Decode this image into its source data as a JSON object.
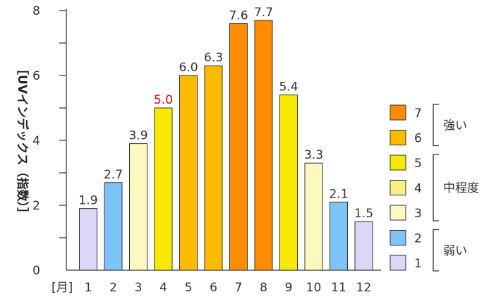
{
  "chart_data": {
    "type": "bar",
    "title": "",
    "ylabel": "［UVインデックス（指数）］",
    "xunit": "[月]",
    "ylim": [
      0,
      8
    ],
    "yticks": [
      0,
      2,
      4,
      6,
      8
    ],
    "categories": [
      "1",
      "2",
      "3",
      "4",
      "5",
      "6",
      "7",
      "8",
      "9",
      "10",
      "11",
      "12"
    ],
    "values": [
      1.9,
      2.7,
      3.9,
      5.0,
      6.0,
      6.3,
      7.6,
      7.7,
      5.4,
      3.3,
      2.1,
      1.5
    ],
    "value_labels": [
      "1.9",
      "2.7",
      "3.9",
      "5.0",
      "6.0",
      "6.3",
      "7.6",
      "7.7",
      "5.4",
      "3.3",
      "2.1",
      "1.5"
    ],
    "highlight_label_color": "#e60012",
    "highlight_index": 3,
    "bar_levels": [
      1,
      2,
      3,
      5,
      6,
      6,
      7,
      7,
      5,
      3,
      2,
      1
    ],
    "level_colors": {
      "1": "#dcd6f7",
      "2": "#7ec4f8",
      "3": "#fdf8c0",
      "4": "#f9ef82",
      "5": "#f7ea00",
      "6": "#fdbb00",
      "7": "#ff8c00"
    },
    "legend": {
      "placement": "right",
      "items": [
        {
          "level": 7,
          "label": "7"
        },
        {
          "level": 6,
          "label": "6"
        },
        {
          "level": 5,
          "label": "5"
        },
        {
          "level": 4,
          "label": "4"
        },
        {
          "level": 3,
          "label": "3"
        },
        {
          "level": 2,
          "label": "2"
        },
        {
          "level": 1,
          "label": "1"
        }
      ],
      "groups": [
        {
          "label": "強い",
          "levels": [
            7,
            6
          ]
        },
        {
          "label": "中程度",
          "levels": [
            5,
            4,
            3
          ]
        },
        {
          "label": "弱い",
          "levels": [
            2,
            1
          ]
        }
      ]
    }
  }
}
